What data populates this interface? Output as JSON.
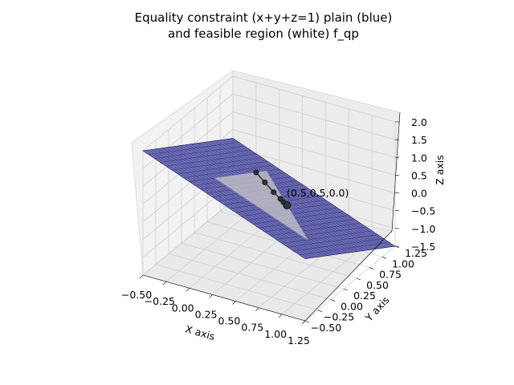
{
  "chart_data": {
    "type": "surface3d",
    "title_line1": "Equality constraint (x+y+z=1) plain (blue)",
    "title_line2": "and feasible region (white) f_qp",
    "xlabel": "X axis",
    "ylabel": "Y axis",
    "zlabel": "Z axis",
    "x_ticks": [
      "−0.50",
      "−0.25",
      "0.00",
      "0.25",
      "0.50",
      "0.75",
      "1.00",
      "1.25"
    ],
    "y_ticks": [
      "−0.50",
      "−0.25",
      "0.00",
      "0.25",
      "0.50",
      "0.75",
      "1.00",
      "1.25"
    ],
    "z_ticks": [
      "2.0",
      "1.5",
      "1.0",
      "0.5",
      "0.0",
      "−0.5",
      "−1.0",
      "−1.5"
    ],
    "xlim": [
      -0.5,
      1.25
    ],
    "ylim": [
      -0.5,
      1.25
    ],
    "zlim": [
      -1.5,
      2.0
    ],
    "plane": {
      "equation": "x+y+z=1",
      "x_range": [
        -0.5,
        1.25
      ],
      "y_range": [
        -0.5,
        1.25
      ],
      "color": "#3a3aa0"
    },
    "feasible_region": {
      "vertices": [
        [
          1,
          0,
          0
        ],
        [
          0,
          1,
          0
        ],
        [
          0,
          0,
          1
        ]
      ],
      "color": "#c8c8c8"
    },
    "path": [
      [
        0.0,
        0.8,
        0.2
      ],
      [
        0.15,
        0.7,
        0.15
      ],
      [
        0.3,
        0.6,
        0.1
      ],
      [
        0.4,
        0.55,
        0.05
      ],
      [
        0.45,
        0.52,
        0.03
      ],
      [
        0.5,
        0.5,
        0.0
      ]
    ],
    "annotation": "(0.5,0.5,0.0)"
  }
}
